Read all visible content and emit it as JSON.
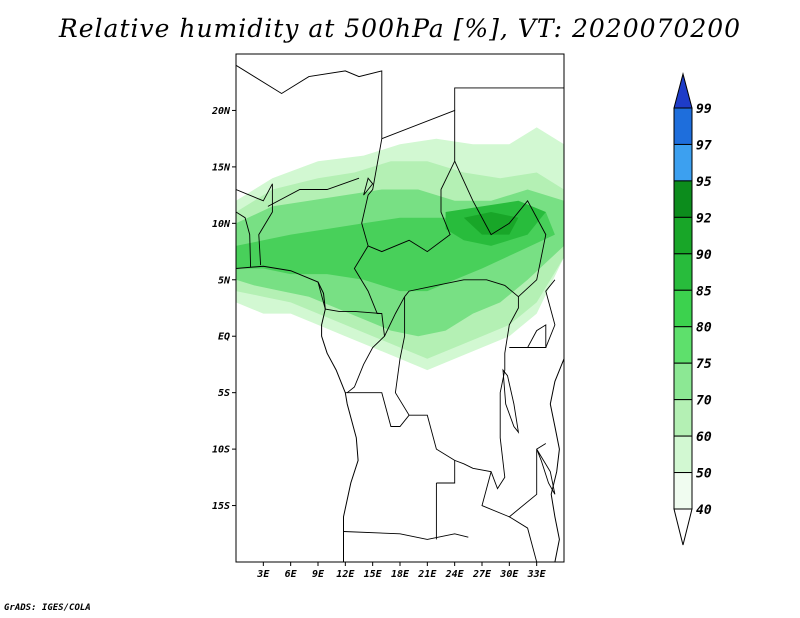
{
  "title": "Relative humidity at 500hPa [%], VT: 2020070200",
  "credit": "GrADS: IGES/COLA",
  "map": {
    "lon_range": [
      0,
      36
    ],
    "lat_range": [
      -20,
      25
    ],
    "lat_ticks": [
      {
        "value": 20,
        "label": "20N"
      },
      {
        "value": 15,
        "label": "15N"
      },
      {
        "value": 10,
        "label": "10N"
      },
      {
        "value": 5,
        "label": "5N"
      },
      {
        "value": 0,
        "label": "EQ"
      },
      {
        "value": -5,
        "label": "5S"
      },
      {
        "value": -10,
        "label": "10S"
      },
      {
        "value": -15,
        "label": "15S"
      }
    ],
    "lon_ticks": [
      {
        "value": 3,
        "label": "3E"
      },
      {
        "value": 6,
        "label": "6E"
      },
      {
        "value": 9,
        "label": "9E"
      },
      {
        "value": 12,
        "label": "12E"
      },
      {
        "value": 15,
        "label": "15E"
      },
      {
        "value": 18,
        "label": "18E"
      },
      {
        "value": 21,
        "label": "21E"
      },
      {
        "value": 24,
        "label": "24E"
      },
      {
        "value": 27,
        "label": "27E"
      },
      {
        "value": 30,
        "label": "30E"
      },
      {
        "value": 33,
        "label": "33E"
      }
    ],
    "humidity_regions": [
      {
        "level": 50,
        "points": [
          [
            0,
            12
          ],
          [
            4,
            14
          ],
          [
            9,
            15.5
          ],
          [
            14,
            16
          ],
          [
            18,
            17
          ],
          [
            22,
            17.5
          ],
          [
            26,
            17
          ],
          [
            30,
            17
          ],
          [
            33,
            18.5
          ],
          [
            36,
            17
          ],
          [
            36,
            7
          ],
          [
            33,
            2
          ],
          [
            30,
            0
          ],
          [
            27,
            -1
          ],
          [
            24,
            -2
          ],
          [
            21,
            -3
          ],
          [
            18,
            -2
          ],
          [
            15,
            -1
          ],
          [
            12,
            0
          ],
          [
            9,
            1
          ],
          [
            6,
            2
          ],
          [
            3,
            2
          ],
          [
            0,
            3
          ]
        ]
      },
      {
        "level": 60,
        "points": [
          [
            0,
            11
          ],
          [
            4,
            13
          ],
          [
            9,
            14
          ],
          [
            13,
            14.5
          ],
          [
            17,
            15.5
          ],
          [
            21,
            15.5
          ],
          [
            25,
            14.5
          ],
          [
            29,
            14
          ],
          [
            33,
            14.5
          ],
          [
            36,
            13
          ],
          [
            36,
            7
          ],
          [
            33,
            3
          ],
          [
            30,
            1
          ],
          [
            27,
            0
          ],
          [
            24,
            -1
          ],
          [
            21,
            -2
          ],
          [
            18,
            -1
          ],
          [
            15,
            0
          ],
          [
            12,
            1
          ],
          [
            9,
            2
          ],
          [
            6,
            3
          ],
          [
            3,
            3.5
          ],
          [
            0,
            4
          ]
        ]
      },
      {
        "level": 75,
        "points": [
          [
            0,
            10
          ],
          [
            4,
            11.5
          ],
          [
            8,
            12
          ],
          [
            12,
            12.5
          ],
          [
            16,
            13
          ],
          [
            20,
            13
          ],
          [
            24,
            12
          ],
          [
            28,
            12
          ],
          [
            32,
            13
          ],
          [
            36,
            12
          ],
          [
            36,
            8
          ],
          [
            32,
            5
          ],
          [
            29,
            3
          ],
          [
            26,
            2
          ],
          [
            23,
            0.5
          ],
          [
            20,
            0
          ],
          [
            17,
            0.5
          ],
          [
            14,
            1.5
          ],
          [
            11,
            2.5
          ],
          [
            8,
            3.5
          ],
          [
            5,
            4
          ],
          [
            2,
            4.5
          ],
          [
            0,
            5
          ]
        ]
      },
      {
        "level": 85,
        "points": [
          [
            0,
            8
          ],
          [
            3,
            8.5
          ],
          [
            6,
            9
          ],
          [
            10,
            9.5
          ],
          [
            14,
            10
          ],
          [
            18,
            10.5
          ],
          [
            22,
            10.5
          ],
          [
            26,
            10.5
          ],
          [
            30,
            11
          ],
          [
            34,
            11
          ],
          [
            35,
            9
          ],
          [
            31,
            7.5
          ],
          [
            27,
            6
          ],
          [
            24,
            5
          ],
          [
            21,
            4
          ],
          [
            18,
            4
          ],
          [
            14,
            5
          ],
          [
            10,
            5.5
          ],
          [
            6,
            5.5
          ],
          [
            3,
            6
          ],
          [
            0,
            6
          ]
        ]
      },
      {
        "level": 90,
        "points": [
          [
            23,
            11
          ],
          [
            27,
            11.5
          ],
          [
            31,
            12
          ],
          [
            34,
            11
          ],
          [
            32,
            9
          ],
          [
            28,
            8
          ],
          [
            25,
            8.5
          ],
          [
            23,
            9.5
          ]
        ]
      },
      {
        "level": 92,
        "points": [
          [
            25,
            10.5
          ],
          [
            28,
            11
          ],
          [
            31,
            10.5
          ],
          [
            30,
            9
          ],
          [
            27,
            9
          ]
        ]
      }
    ],
    "coastline": [
      [
        0,
        6
      ],
      [
        3,
        6.2
      ],
      [
        6,
        5.8
      ],
      [
        9,
        4.8
      ],
      [
        9.6,
        3.8
      ],
      [
        9.8,
        2.4
      ],
      [
        9.4,
        1
      ],
      [
        9.4,
        0
      ],
      [
        10,
        -1.5
      ],
      [
        11,
        -3
      ],
      [
        12,
        -5
      ],
      [
        12.2,
        -6
      ],
      [
        13.2,
        -9
      ],
      [
        13.4,
        -11
      ],
      [
        12.6,
        -13
      ],
      [
        11.8,
        -16
      ],
      [
        11.8,
        -17.3
      ],
      [
        11.8,
        -20
      ]
    ],
    "east_coast": [
      [
        36,
        -2
      ],
      [
        35,
        -4
      ],
      [
        34.5,
        -6
      ],
      [
        35,
        -8
      ],
      [
        35.5,
        -10
      ],
      [
        35.2,
        -12
      ],
      [
        34.6,
        -14
      ],
      [
        35,
        -16
      ],
      [
        35.5,
        -18
      ],
      [
        35,
        -20
      ]
    ],
    "borders": [
      [
        [
          0,
          24
        ],
        [
          5,
          21.5
        ],
        [
          8,
          23
        ],
        [
          12,
          23.5
        ],
        [
          13.5,
          23
        ],
        [
          16,
          23.5
        ],
        [
          16,
          21
        ],
        [
          16,
          17.5
        ],
        [
          15,
          13
        ],
        [
          14.5,
          12.5
        ],
        [
          13.8,
          10
        ],
        [
          14.5,
          8
        ],
        [
          13,
          6
        ],
        [
          14.5,
          4
        ],
        [
          15.5,
          2
        ],
        [
          16,
          2
        ],
        [
          16.3,
          0
        ]
      ],
      [
        [
          16,
          17.5
        ],
        [
          24,
          20
        ],
        [
          24,
          15.5
        ],
        [
          22.5,
          13
        ],
        [
          22.5,
          11
        ],
        [
          23.5,
          9
        ],
        [
          21,
          7.5
        ],
        [
          19,
          8.5
        ],
        [
          16,
          7.5
        ],
        [
          14.5,
          8
        ]
      ],
      [
        [
          24,
          20
        ],
        [
          24,
          22
        ],
        [
          25,
          22
        ],
        [
          36,
          22
        ]
      ],
      [
        [
          24,
          15.5
        ],
        [
          26,
          12
        ],
        [
          28,
          9
        ],
        [
          30,
          10
        ],
        [
          32,
          12
        ],
        [
          34,
          9
        ],
        [
          33,
          5
        ],
        [
          31,
          3.5
        ],
        [
          29.5,
          4.5
        ],
        [
          27.5,
          5
        ],
        [
          25,
          5
        ],
        [
          22,
          4.5
        ],
        [
          19,
          4
        ],
        [
          18.5,
          3.5
        ]
      ],
      [
        [
          18.5,
          3.5
        ],
        [
          17.5,
          2
        ],
        [
          16.3,
          0
        ],
        [
          15,
          -1
        ],
        [
          14,
          -2.5
        ],
        [
          13,
          -4.5
        ],
        [
          12.2,
          -5
        ]
      ],
      [
        [
          18.5,
          3.5
        ],
        [
          18.5,
          0
        ],
        [
          18,
          -2
        ],
        [
          17.5,
          -5
        ],
        [
          19,
          -7
        ],
        [
          21,
          -7
        ],
        [
          22,
          -10
        ],
        [
          24,
          -11
        ],
        [
          25,
          -11.3
        ],
        [
          26,
          -11.7
        ],
        [
          28,
          -12
        ],
        [
          28.7,
          -13.5
        ],
        [
          29.5,
          -12.5
        ],
        [
          29,
          -9
        ],
        [
          29,
          -5
        ],
        [
          29.5,
          -3
        ],
        [
          29.5,
          -1.5
        ],
        [
          30,
          1
        ],
        [
          31,
          2.5
        ],
        [
          31,
          3.5
        ]
      ],
      [
        [
          12,
          -5
        ],
        [
          16,
          -5
        ],
        [
          17,
          -8
        ],
        [
          18,
          -8
        ],
        [
          19,
          -7
        ]
      ],
      [
        [
          11.8,
          -17.3
        ],
        [
          18,
          -17.5
        ],
        [
          21,
          -18
        ],
        [
          24,
          -17.5
        ],
        [
          25.5,
          -17.8
        ]
      ],
      [
        [
          22,
          -13
        ],
        [
          22,
          -18
        ]
      ],
      [
        [
          24,
          -11
        ],
        [
          24,
          -13
        ],
        [
          22,
          -13
        ]
      ],
      [
        [
          28,
          -12
        ],
        [
          27,
          -15
        ],
        [
          30,
          -16
        ],
        [
          33,
          -14
        ],
        [
          33,
          -10
        ],
        [
          34,
          -9.5
        ]
      ],
      [
        [
          30,
          -16
        ],
        [
          32,
          -17
        ],
        [
          33,
          -20
        ]
      ],
      [
        [
          30,
          -1
        ],
        [
          34,
          -1
        ],
        [
          35,
          1
        ],
        [
          34,
          4
        ],
        [
          35,
          5
        ]
      ],
      [
        [
          0,
          13
        ],
        [
          3,
          12
        ],
        [
          4,
          13.5
        ],
        [
          4,
          11
        ],
        [
          2.5,
          9
        ],
        [
          2.7,
          6.3
        ]
      ],
      [
        [
          3.5,
          11.5
        ],
        [
          7,
          13
        ],
        [
          10,
          13
        ],
        [
          13.5,
          14
        ]
      ],
      [
        [
          0,
          11
        ],
        [
          1,
          10.5
        ],
        [
          1.5,
          9
        ],
        [
          1.6,
          6.1
        ]
      ],
      [
        [
          9,
          4.8
        ],
        [
          9.8,
          2.4
        ],
        [
          11.3,
          2.2
        ],
        [
          13,
          2.2
        ],
        [
          16,
          2
        ]
      ]
    ],
    "lakes": [
      [
        [
          29.3,
          -3
        ],
        [
          29.6,
          -6
        ],
        [
          30.5,
          -8
        ],
        [
          31,
          -8.5
        ],
        [
          30.5,
          -6
        ],
        [
          29.8,
          -3.5
        ]
      ],
      [
        [
          32,
          -1
        ],
        [
          34,
          -1
        ],
        [
          34,
          1
        ],
        [
          33,
          0.5
        ]
      ],
      [
        [
          33,
          -10
        ],
        [
          34.5,
          -12
        ],
        [
          35,
          -14
        ],
        [
          34.3,
          -13
        ],
        [
          33.5,
          -11
        ]
      ],
      [
        [
          14,
          12.5
        ],
        [
          15,
          13.5
        ],
        [
          14.5,
          14
        ]
      ]
    ]
  },
  "colorbar": {
    "levels": [
      "99",
      "97",
      "95",
      "92",
      "90",
      "85",
      "80",
      "75",
      "70",
      "60",
      "50",
      "40"
    ],
    "colors": [
      "#1e3cc8",
      "#1e6edc",
      "#3ca0f0",
      "#0c8c1c",
      "#18a628",
      "#28bc3c",
      "#3cd24e",
      "#5ee06c",
      "#8ce894",
      "#b4f0b4",
      "#d2f8d2",
      "#f0fcf0"
    ]
  },
  "fill_colors": {
    "50": "#d2f8d2",
    "60": "#b4f0b4",
    "75": "#78e084",
    "85": "#48d05a",
    "90": "#28bc3c",
    "92": "#18a628"
  }
}
